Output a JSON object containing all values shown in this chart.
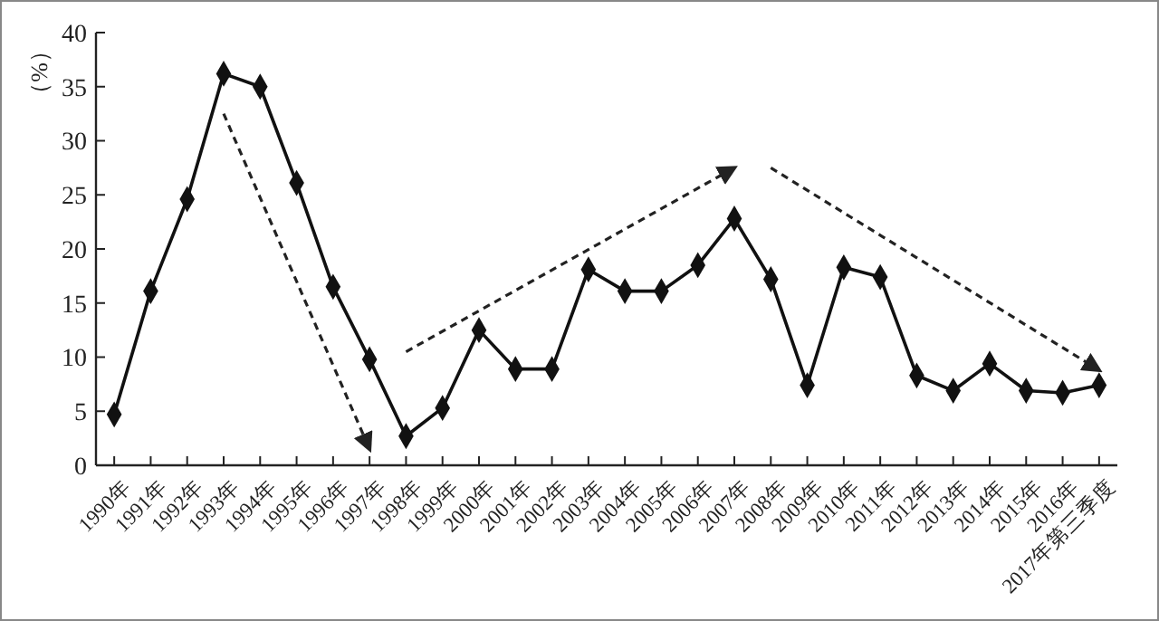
{
  "chart_data": {
    "type": "line",
    "ylabel": "（%）",
    "categories": [
      "1990年",
      "1991年",
      "1992年",
      "1993年",
      "1994年",
      "1995年",
      "1996年",
      "1997年",
      "1998年",
      "1999年",
      "2000年",
      "2001年",
      "2002年",
      "2003年",
      "2004年",
      "2005年",
      "2006年",
      "2007年",
      "2008年",
      "2009年",
      "2010年",
      "2011年",
      "2012年",
      "2013年",
      "2014年",
      "2015年",
      "2016年",
      "2017年第三季度"
    ],
    "series": [
      {
        "color": "#111111",
        "values": [
          4.7,
          16.1,
          24.6,
          36.2,
          35.0,
          26.1,
          16.5,
          9.8,
          2.7,
          5.3,
          12.5,
          8.9,
          8.9,
          18.1,
          16.1,
          16.1,
          18.5,
          22.8,
          17.2,
          7.4,
          18.3,
          17.4,
          8.3,
          6.9,
          9.4,
          6.9,
          6.7,
          7.4
        ]
      }
    ],
    "ylim": [
      0,
      40
    ],
    "yticks": [
      0,
      5,
      10,
      15,
      20,
      25,
      30,
      35,
      40
    ],
    "grid": false,
    "marker": "diamond",
    "line_style": "solid"
  }
}
